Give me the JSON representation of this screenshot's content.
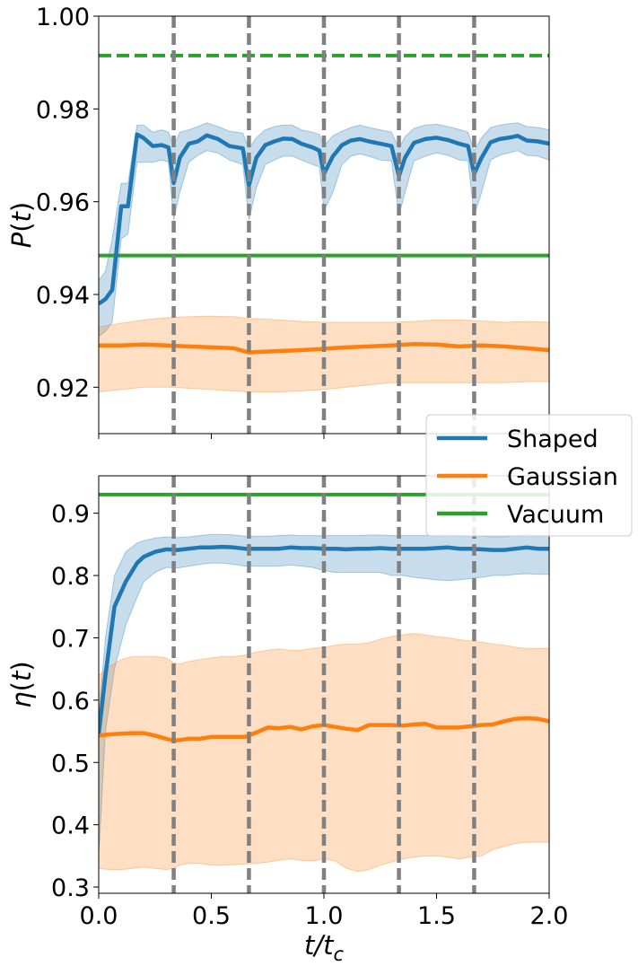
{
  "chart_data": [
    {
      "type": "line",
      "panel": "top",
      "ylabel": "P(t)",
      "xlim": [
        0.0,
        2.0
      ],
      "ylim": [
        0.91,
        1.0
      ],
      "yticks": [
        0.92,
        0.94,
        0.96,
        0.98,
        1.0
      ],
      "ytick_labels": [
        "0.92",
        "0.94",
        "0.96",
        "0.98",
        "1.00"
      ],
      "xticks": [
        0.0,
        0.5,
        1.0,
        1.5,
        2.0
      ],
      "vlines": [
        0.333,
        0.667,
        1.0,
        1.333,
        1.667
      ],
      "vline_color": "#808080",
      "series": [
        {
          "name": "Shaped",
          "color": "#1f77b4",
          "x": [
            0.0,
            0.03,
            0.06,
            0.1,
            0.13,
            0.17,
            0.2,
            0.24,
            0.28,
            0.31,
            0.333,
            0.36,
            0.4,
            0.44,
            0.48,
            0.53,
            0.58,
            0.64,
            0.667,
            0.7,
            0.74,
            0.78,
            0.82,
            0.86,
            0.9,
            0.95,
            0.98,
            1.0,
            1.04,
            1.08,
            1.12,
            1.16,
            1.2,
            1.25,
            1.3,
            1.333,
            1.36,
            1.4,
            1.45,
            1.5,
            1.55,
            1.6,
            1.64,
            1.667,
            1.7,
            1.74,
            1.78,
            1.82,
            1.86,
            1.9,
            1.95,
            2.0
          ],
          "y": [
            0.938,
            0.939,
            0.941,
            0.959,
            0.959,
            0.9745,
            0.9737,
            0.972,
            0.9722,
            0.9717,
            0.964,
            0.9695,
            0.9725,
            0.973,
            0.9743,
            0.9735,
            0.972,
            0.9715,
            0.9635,
            0.9695,
            0.9722,
            0.973,
            0.9736,
            0.9735,
            0.9725,
            0.9717,
            0.971,
            0.966,
            0.9698,
            0.9722,
            0.9732,
            0.9735,
            0.973,
            0.9725,
            0.972,
            0.9655,
            0.9695,
            0.9727,
            0.9735,
            0.9738,
            0.9733,
            0.9725,
            0.972,
            0.966,
            0.9695,
            0.9728,
            0.9735,
            0.9738,
            0.9742,
            0.9732,
            0.973,
            0.9725
          ],
          "band_upper": [
            0.943,
            0.945,
            0.952,
            0.964,
            0.964,
            0.9765,
            0.9765,
            0.975,
            0.9755,
            0.975,
            0.972,
            0.975,
            0.9755,
            0.9762,
            0.977,
            0.9762,
            0.9752,
            0.9748,
            0.9715,
            0.9738,
            0.9755,
            0.9762,
            0.9765,
            0.9765,
            0.9755,
            0.975,
            0.9745,
            0.972,
            0.9742,
            0.9752,
            0.976,
            0.9765,
            0.976,
            0.9755,
            0.975,
            0.9715,
            0.974,
            0.9758,
            0.9765,
            0.9767,
            0.9762,
            0.9756,
            0.975,
            0.971,
            0.9738,
            0.976,
            0.9765,
            0.9768,
            0.977,
            0.9762,
            0.976,
            0.9755
          ],
          "band_lower": [
            0.931,
            0.932,
            0.934,
            0.952,
            0.953,
            0.9685,
            0.9685,
            0.9685,
            0.969,
            0.9685,
            0.956,
            0.962,
            0.9685,
            0.97,
            0.971,
            0.9705,
            0.969,
            0.968,
            0.956,
            0.963,
            0.968,
            0.969,
            0.9698,
            0.9698,
            0.969,
            0.968,
            0.9675,
            0.958,
            0.962,
            0.968,
            0.9698,
            0.9703,
            0.9698,
            0.969,
            0.9688,
            0.957,
            0.962,
            0.9688,
            0.9698,
            0.9705,
            0.97,
            0.969,
            0.9688,
            0.957,
            0.962,
            0.969,
            0.97,
            0.9705,
            0.971,
            0.97,
            0.9698,
            0.969
          ]
        },
        {
          "name": "Gaussian",
          "color": "#ff7f0e",
          "x": [
            0.0,
            0.1,
            0.2,
            0.3,
            0.4,
            0.5,
            0.6,
            0.667,
            0.7,
            0.8,
            0.9,
            1.0,
            1.1,
            1.2,
            1.3,
            1.4,
            1.5,
            1.6,
            1.7,
            1.8,
            1.9,
            2.0
          ],
          "y": [
            0.929,
            0.929,
            0.9292,
            0.929,
            0.9288,
            0.9286,
            0.9284,
            0.9275,
            0.9276,
            0.9278,
            0.928,
            0.9283,
            0.9286,
            0.9288,
            0.929,
            0.9293,
            0.9292,
            0.9288,
            0.929,
            0.9288,
            0.9284,
            0.928
          ],
          "band_upper": [
            0.933,
            0.9338,
            0.9345,
            0.935,
            0.9352,
            0.9353,
            0.9352,
            0.9348,
            0.9348,
            0.9345,
            0.9342,
            0.934,
            0.934,
            0.934,
            0.934,
            0.9342,
            0.9345,
            0.9345,
            0.9343,
            0.934,
            0.9342,
            0.934
          ],
          "band_lower": [
            0.919,
            0.9195,
            0.92,
            0.92,
            0.9198,
            0.9195,
            0.9192,
            0.919,
            0.919,
            0.919,
            0.9192,
            0.9195,
            0.92,
            0.9205,
            0.921,
            0.921,
            0.921,
            0.921,
            0.921,
            0.921,
            0.9212,
            0.9212
          ]
        }
      ],
      "hlines": [
        {
          "name": "Vacuum",
          "color": "#2ca02c",
          "y": 0.9484,
          "style": "solid"
        },
        {
          "name": "Vacuum",
          "color": "#2ca02c",
          "y": 0.9915,
          "style": "dashed"
        }
      ]
    },
    {
      "type": "line",
      "panel": "bottom",
      "ylabel": "η(t)",
      "xlabel": "t/t_c",
      "xlim": [
        0.0,
        2.0
      ],
      "ylim": [
        0.29,
        0.96
      ],
      "yticks": [
        0.3,
        0.4,
        0.5,
        0.6,
        0.7,
        0.8,
        0.9
      ],
      "ytick_labels": [
        "0.3",
        "0.4",
        "0.5",
        "0.6",
        "0.7",
        "0.8",
        "0.9"
      ],
      "xticks": [
        0.0,
        0.5,
        1.0,
        1.5,
        2.0
      ],
      "xtick_labels": [
        "0.0",
        "0.5",
        "1.0",
        "1.5",
        "2.0"
      ],
      "vlines": [
        0.333,
        0.667,
        1.0,
        1.333,
        1.667
      ],
      "vline_color": "#808080",
      "series": [
        {
          "name": "Shaped",
          "color": "#1f77b4",
          "x": [
            0.0,
            0.03,
            0.07,
            0.12,
            0.17,
            0.2,
            0.25,
            0.3,
            0.35,
            0.4,
            0.45,
            0.5,
            0.55,
            0.6,
            0.65,
            0.7,
            0.75,
            0.8,
            0.85,
            0.9,
            0.95,
            1.0,
            1.05,
            1.1,
            1.15,
            1.2,
            1.25,
            1.3,
            1.35,
            1.4,
            1.45,
            1.5,
            1.55,
            1.6,
            1.65,
            1.7,
            1.75,
            1.8,
            1.85,
            1.9,
            1.95,
            2.0
          ],
          "y": [
            0.545,
            0.64,
            0.75,
            0.79,
            0.82,
            0.83,
            0.838,
            0.842,
            0.841,
            0.843,
            0.845,
            0.845,
            0.846,
            0.845,
            0.843,
            0.843,
            0.843,
            0.843,
            0.845,
            0.844,
            0.844,
            0.843,
            0.843,
            0.842,
            0.843,
            0.843,
            0.844,
            0.843,
            0.843,
            0.843,
            0.843,
            0.844,
            0.845,
            0.843,
            0.843,
            0.842,
            0.841,
            0.841,
            0.843,
            0.845,
            0.843,
            0.843
          ],
          "band_upper": [
            0.575,
            0.7,
            0.8,
            0.838,
            0.852,
            0.856,
            0.86,
            0.862,
            0.861,
            0.862,
            0.864,
            0.866,
            0.866,
            0.865,
            0.863,
            0.863,
            0.863,
            0.864,
            0.865,
            0.864,
            0.864,
            0.864,
            0.864,
            0.864,
            0.864,
            0.865,
            0.865,
            0.864,
            0.864,
            0.864,
            0.864,
            0.865,
            0.866,
            0.865,
            0.864,
            0.863,
            0.862,
            0.862,
            0.864,
            0.866,
            0.864,
            0.864
          ],
          "band_lower": [
            0.35,
            0.55,
            0.65,
            0.72,
            0.765,
            0.79,
            0.805,
            0.813,
            0.812,
            0.815,
            0.818,
            0.82,
            0.82,
            0.818,
            0.815,
            0.815,
            0.815,
            0.815,
            0.817,
            0.815,
            0.813,
            0.808,
            0.805,
            0.805,
            0.805,
            0.805,
            0.805,
            0.8,
            0.8,
            0.797,
            0.795,
            0.793,
            0.792,
            0.793,
            0.795,
            0.797,
            0.8,
            0.8,
            0.802,
            0.803,
            0.802,
            0.802
          ]
        },
        {
          "name": "Gaussian",
          "color": "#ff7f0e",
          "x": [
            0.0,
            0.05,
            0.1,
            0.15,
            0.2,
            0.25,
            0.3,
            0.333,
            0.36,
            0.4,
            0.45,
            0.5,
            0.55,
            0.6,
            0.65,
            0.7,
            0.75,
            0.8,
            0.85,
            0.9,
            0.95,
            1.0,
            1.05,
            1.1,
            1.15,
            1.2,
            1.25,
            1.3,
            1.35,
            1.4,
            1.45,
            1.5,
            1.55,
            1.6,
            1.65,
            1.7,
            1.75,
            1.8,
            1.85,
            1.9,
            1.95,
            2.0
          ],
          "y": [
            0.543,
            0.545,
            0.546,
            0.547,
            0.547,
            0.543,
            0.538,
            0.535,
            0.536,
            0.538,
            0.538,
            0.541,
            0.541,
            0.541,
            0.541,
            0.548,
            0.556,
            0.555,
            0.557,
            0.553,
            0.558,
            0.56,
            0.557,
            0.554,
            0.552,
            0.56,
            0.56,
            0.56,
            0.559,
            0.561,
            0.562,
            0.556,
            0.556,
            0.556,
            0.558,
            0.56,
            0.561,
            0.566,
            0.57,
            0.571,
            0.57,
            0.566
          ],
          "band_upper": [
            0.64,
            0.655,
            0.665,
            0.67,
            0.67,
            0.67,
            0.668,
            0.66,
            0.658,
            0.662,
            0.665,
            0.668,
            0.67,
            0.67,
            0.672,
            0.677,
            0.68,
            0.682,
            0.68,
            0.68,
            0.683,
            0.685,
            0.688,
            0.69,
            0.69,
            0.692,
            0.698,
            0.702,
            0.705,
            0.707,
            0.705,
            0.702,
            0.7,
            0.697,
            0.695,
            0.693,
            0.69,
            0.688,
            0.685,
            0.683,
            0.683,
            0.683
          ],
          "band_lower": [
            0.33,
            0.328,
            0.328,
            0.33,
            0.332,
            0.33,
            0.328,
            0.33,
            0.335,
            0.338,
            0.338,
            0.335,
            0.335,
            0.336,
            0.337,
            0.338,
            0.34,
            0.343,
            0.345,
            0.343,
            0.342,
            0.345,
            0.342,
            0.33,
            0.325,
            0.328,
            0.335,
            0.34,
            0.345,
            0.348,
            0.35,
            0.35,
            0.348,
            0.345,
            0.348,
            0.35,
            0.36,
            0.365,
            0.37,
            0.372,
            0.372,
            0.372
          ]
        }
      ],
      "hlines": [
        {
          "name": "Vacuum",
          "color": "#2ca02c",
          "y": 0.93,
          "style": "solid"
        }
      ]
    }
  ],
  "legend": {
    "placement": "right, between panels",
    "entries": [
      {
        "label": "Shaped",
        "color": "#1f77b4"
      },
      {
        "label": "Gaussian",
        "color": "#ff7f0e"
      },
      {
        "label": "Vacuum",
        "color": "#2ca02c"
      }
    ]
  }
}
